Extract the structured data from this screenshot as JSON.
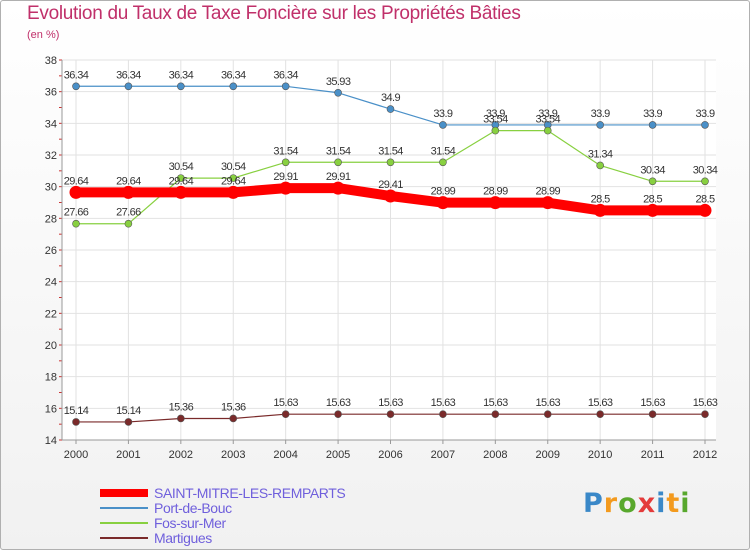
{
  "title": "Evolution du Taux de Taxe Foncière sur les Propriétés Bâties",
  "unit_label": "(en %)",
  "brand": {
    "letters": [
      "P",
      "r",
      "o",
      "x",
      "i",
      "t",
      "i"
    ],
    "colors": [
      "#3a88c8",
      "#f39a1e",
      "#58a82d",
      "#e43b3b",
      "#3a88c8",
      "#f39a1e",
      "#58a82d"
    ]
  },
  "chart_data": {
    "type": "line",
    "title": "Evolution du Taux de Taxe Foncière sur les Propriétés Bâties",
    "ylabel": "(en %)",
    "ylim": [
      14,
      38
    ],
    "yticks": [
      14,
      16,
      18,
      20,
      22,
      24,
      26,
      28,
      30,
      32,
      34,
      36,
      38
    ],
    "grid": true,
    "x": [
      "2000",
      "2001",
      "2002",
      "2003",
      "2004",
      "2005",
      "2006",
      "2007",
      "2008",
      "2009",
      "2010",
      "2011",
      "2012"
    ],
    "series": [
      {
        "name": "SAINT-MITRE-LES-REMPARTS",
        "color": "#ff0000",
        "values": [
          29.64,
          29.64,
          29.64,
          29.64,
          29.91,
          29.91,
          29.41,
          28.99,
          28.99,
          28.99,
          28.5,
          28.5,
          28.5
        ],
        "labels": [
          "29.64",
          "29.64",
          "29.64",
          "29.64",
          "29.91",
          "29.91",
          "29.41",
          "28.99",
          "28.99",
          "28.99",
          "28.5",
          "28.5",
          "28.5"
        ]
      },
      {
        "name": "Port-de-Bouc",
        "color": "#4a90c8",
        "values": [
          36.34,
          36.34,
          36.34,
          36.34,
          36.34,
          35.93,
          34.9,
          33.9,
          33.9,
          33.9,
          33.9,
          33.9,
          33.9
        ],
        "labels": [
          "36.34",
          "36.34",
          "36.34",
          "36.34",
          "36.34",
          "35.93",
          "34.9",
          "33.9",
          "33.9",
          "33.9",
          "33.9",
          "33.9",
          "33.9"
        ]
      },
      {
        "name": "Fos-sur-Mer",
        "color": "#88d040",
        "values": [
          27.66,
          27.66,
          30.54,
          30.54,
          31.54,
          31.54,
          31.54,
          31.54,
          33.54,
          33.54,
          31.34,
          30.34,
          30.34
        ],
        "labels": [
          "27.66",
          "27.66",
          "30.54",
          "30.54",
          "31.54",
          "31.54",
          "31.54",
          "31.54",
          "33.54",
          "33.54",
          "31.34",
          "30.34",
          "30.34"
        ]
      },
      {
        "name": "Martigues",
        "color": "#7a2a2a",
        "values": [
          15.14,
          15.14,
          15.36,
          15.36,
          15.63,
          15.63,
          15.63,
          15.63,
          15.63,
          15.63,
          15.63,
          15.63,
          15.63
        ],
        "labels": [
          "15.14",
          "15.14",
          "15.36",
          "15.36",
          "15.63",
          "15.63",
          "15.63",
          "15.63",
          "15.63",
          "15.63",
          "15.63",
          "15.63",
          "15.63"
        ]
      }
    ]
  }
}
